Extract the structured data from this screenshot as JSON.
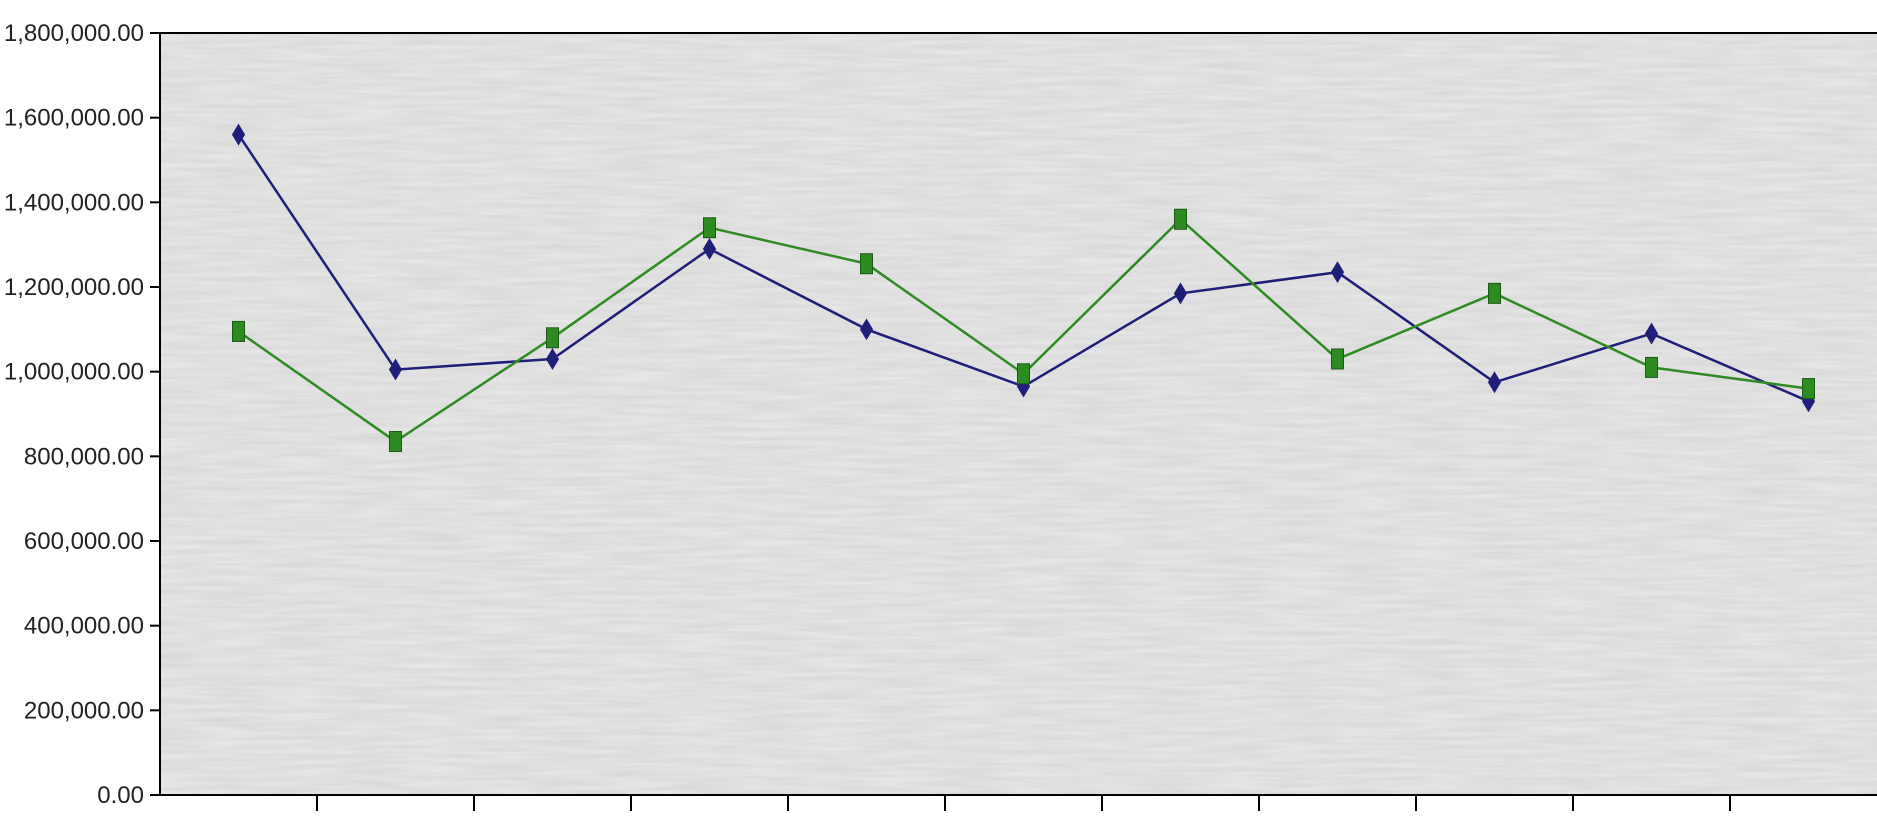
{
  "chart_data": {
    "type": "line",
    "title": "",
    "xlabel": "",
    "ylabel": "",
    "categories": [
      "",
      "",
      "",
      "",
      "",
      "",
      "",
      "",
      "",
      "",
      ""
    ],
    "y_ticks": [
      "0.00",
      "200,000.00",
      "400,000.00",
      "600,000.00",
      "800,000.00",
      "1,000,000.00",
      "1,200,000.00",
      "1,400,000.00",
      "1,600,000.00",
      "1,800,000.00"
    ],
    "ylim": [
      0,
      1800000
    ],
    "grid": false,
    "legend": "none",
    "series": [
      {
        "marker": "diamond",
        "color": "#1f1f7a",
        "values": [
          1560000,
          1005000,
          1030000,
          1290000,
          1100000,
          965000,
          1185000,
          1235000,
          975000,
          1090000,
          930000
        ]
      },
      {
        "marker": "square",
        "color": "#2e8b22",
        "values": [
          1095000,
          835000,
          1080000,
          1340000,
          1255000,
          995000,
          1360000,
          1030000,
          1185000,
          1010000,
          960000
        ]
      }
    ],
    "plot_background": "#eaeaea",
    "axis_color": "#000000"
  }
}
